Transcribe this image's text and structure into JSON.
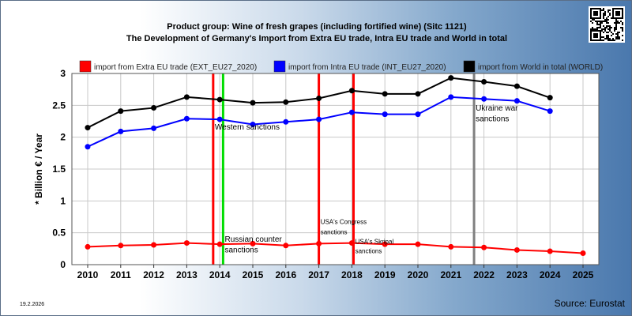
{
  "chart_data": {
    "type": "line",
    "title": "Product group: Wine of fresh grapes (including fortified wine) (Sitc 1121)",
    "subtitle": "The Development of Germany's Import from Extra EU trade, Intra EU trade and World in total",
    "ylabel": "* Billion € / Year",
    "ylim": [
      0,
      3
    ],
    "yticks": [
      "0",
      "0.5",
      "1",
      "1.5",
      "2",
      "2.5",
      "3"
    ],
    "x": [
      "2010",
      "2011",
      "2012",
      "2013",
      "2014",
      "2015",
      "2016",
      "2017",
      "2018",
      "2019",
      "2020",
      "2021",
      "2022",
      "2023",
      "2024",
      "2025"
    ],
    "grid": true,
    "legend_position": "top",
    "series": [
      {
        "name": "import from Extra EU trade (EXT_EU27_2020)",
        "color": "#ff0000",
        "values": [
          0.28,
          0.3,
          0.31,
          0.34,
          0.32,
          0.33,
          0.3,
          0.33,
          0.34,
          0.32,
          0.32,
          0.28,
          0.27,
          0.23,
          0.21,
          0.18
        ]
      },
      {
        "name": "import from Intra EU trade (INT_EU27_2020)",
        "color": "#0000ff",
        "values": [
          1.85,
          2.09,
          2.14,
          2.29,
          2.28,
          2.2,
          2.24,
          2.28,
          2.39,
          2.36,
          2.36,
          2.63,
          2.6,
          2.57,
          2.41,
          null
        ]
      },
      {
        "name": "import from World in total (WORLD)",
        "color": "#000000",
        "values": [
          2.15,
          2.41,
          2.46,
          2.63,
          2.59,
          2.54,
          2.55,
          2.61,
          2.73,
          2.68,
          2.68,
          2.93,
          2.87,
          2.8,
          2.62,
          null
        ]
      }
    ],
    "events": [
      {
        "x": 2013.8,
        "color": "#ff0000"
      },
      {
        "x": 2014.1,
        "color": "#00dd00"
      },
      {
        "x": 2017.0,
        "color": "#ff0000"
      },
      {
        "x": 2018.05,
        "color": "#ff0000"
      },
      {
        "x": 2021.7,
        "color": "#808080"
      }
    ],
    "annotations": [
      {
        "text": "Western sanctions",
        "x": 2013.85,
        "y": 2.12,
        "size": "normal"
      },
      {
        "text": "Russian counter",
        "x": 2014.15,
        "y": 0.36,
        "size": "normal"
      },
      {
        "text": "sanctions",
        "x": 2014.15,
        "y": 0.19,
        "size": "normal"
      },
      {
        "text": "USA's Congress",
        "x": 2017.05,
        "y": 0.64,
        "size": "small"
      },
      {
        "text": "sanctions",
        "x": 2017.05,
        "y": 0.48,
        "size": "small"
      },
      {
        "text": "USA's Skripal",
        "x": 2018.1,
        "y": 0.33,
        "size": "small"
      },
      {
        "text": "sanctions",
        "x": 2018.1,
        "y": 0.18,
        "size": "small"
      },
      {
        "text": "Ukraine war",
        "x": 2021.75,
        "y": 2.42,
        "size": "normal"
      },
      {
        "text": "sanctions",
        "x": 2021.75,
        "y": 2.25,
        "size": "normal"
      }
    ]
  },
  "footer": {
    "date": "19.2.2026",
    "source": "Source: Eurostat"
  },
  "colors": {
    "plot_background": "#ffffff",
    "grid": "#c8c8c8"
  },
  "icons": {
    "qr_code": "qr-code-icon"
  }
}
